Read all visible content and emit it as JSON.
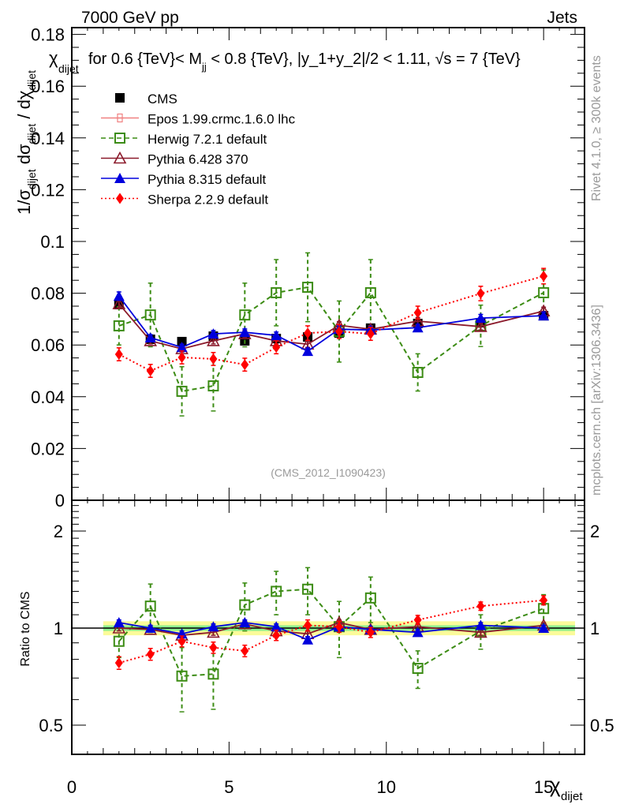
{
  "header": {
    "left_label": "7000 GeV pp",
    "right_label": "Jets"
  },
  "side_labels": {
    "rivet": "Rivet 4.1.0, ≥ 300k events",
    "mcplots": "mcplots.cern.ch [arXiv:1306.3436]"
  },
  "chart_data": [
    {
      "type": "line",
      "panel": "main",
      "title_prefix": "χ",
      "title_prefix_sub": "dijet",
      "title": "for 0.6 {TeV}< M",
      "title_sub": "jj",
      "title_suffix": " < 0.8 {TeV}, |y_1+y_2|/2 < 1.11, √s = 7 {TeV}",
      "ylabel": "1/σ_dijet dσ_dijet / dχ_dijet",
      "ylabel_parts": {
        "a": "1/σ",
        "a_sub": "dijet",
        "b": " dσ",
        "b_sub": "dijet",
        "c": " / dχ",
        "c_sub": "dijet"
      },
      "xlabel": "χ_dijet",
      "xlim": [
        0,
        16.3
      ],
      "ylim": [
        0,
        0.185
      ],
      "yticks": [
        0,
        0.02,
        0.04,
        0.06,
        0.08,
        0.1,
        0.12,
        0.14,
        0.16,
        0.18
      ],
      "ytick_labels": [
        "0",
        "0.02",
        "0.04",
        "0.06",
        "0.08",
        "0.1",
        "0.12",
        "0.14",
        "0.16",
        "0.18"
      ],
      "watermark": "(CMS_2012_I1090423)",
      "legend_position": "top-left",
      "x": [
        1.5,
        2.5,
        3.5,
        4.5,
        5.5,
        6.5,
        7.5,
        8.5,
        9.5,
        11,
        13,
        15
      ],
      "series": [
        {
          "name": "CMS",
          "color": "#000000",
          "marker": "square-filled",
          "line": "none",
          "values": [
            0.0756,
            0.0622,
            0.0613,
            0.0634,
            0.0616,
            0.0625,
            0.0631,
            0.0646,
            0.0665,
            0.0683,
            0.0686,
            0.0713
          ],
          "errors": [
            0.001,
            0.001,
            0.001,
            0.001,
            0.001,
            0.001,
            0.001,
            0.001,
            0.001,
            0.001,
            0.001,
            0.001
          ]
        },
        {
          "name": "Epos 1.99.crmc.1.6.0 lhc",
          "color": "#f08080",
          "marker": "plus-open",
          "line": "solid",
          "values": [],
          "errors": []
        },
        {
          "name": "Herwig 7.2.1 default",
          "color": "#3c8c14",
          "marker": "square-open",
          "line": "dashed",
          "values": [
            0.0674,
            0.0716,
            0.0421,
            0.0442,
            0.0716,
            0.0802,
            0.0823,
            0.0652,
            0.0802,
            0.0494,
            0.0674,
            0.0802
          ],
          "errors": [
            0.0074,
            0.0123,
            0.0095,
            0.0097,
            0.0123,
            0.0128,
            0.0133,
            0.0118,
            0.0128,
            0.0072,
            0.008,
            0.0088
          ]
        },
        {
          "name": "Pythia 6.428 370",
          "color": "#8b1a2b",
          "marker": "triangle-open",
          "line": "solid",
          "values": [
            0.0759,
            0.0616,
            0.0585,
            0.0616,
            0.0643,
            0.0616,
            0.0603,
            0.0676,
            0.0661,
            0.0692,
            0.0671,
            0.0731
          ],
          "errors": [
            0.0015,
            0.0012,
            0.0012,
            0.0012,
            0.0013,
            0.0012,
            0.0012,
            0.0014,
            0.0013,
            0.0014,
            0.0013,
            0.0015
          ]
        },
        {
          "name": "Pythia 8.315 default",
          "color": "#0000dd",
          "marker": "triangle-filled",
          "line": "solid",
          "values": [
            0.0789,
            0.0628,
            0.0591,
            0.0643,
            0.0649,
            0.0637,
            0.0576,
            0.0661,
            0.0658,
            0.0667,
            0.0704,
            0.0713
          ],
          "errors": [
            0.0016,
            0.0012,
            0.0012,
            0.0013,
            0.0013,
            0.0013,
            0.0012,
            0.0013,
            0.0013,
            0.0013,
            0.0014,
            0.0014
          ]
        },
        {
          "name": "Sherpa 2.2.9 default",
          "color": "#ff0000",
          "marker": "diamond-filled",
          "line": "dotted",
          "values": [
            0.0564,
            0.05,
            0.0552,
            0.0546,
            0.0524,
            0.0591,
            0.0646,
            0.0652,
            0.0643,
            0.0725,
            0.0799,
            0.0866
          ],
          "errors": [
            0.0025,
            0.0025,
            0.0025,
            0.0025,
            0.0025,
            0.0025,
            0.0028,
            0.0027,
            0.0025,
            0.0025,
            0.0028,
            0.003
          ]
        }
      ]
    },
    {
      "type": "line",
      "panel": "ratio",
      "ylabel": "Ratio to CMS",
      "xlabel": "χ_dijet",
      "yscale": "log",
      "xlim": [
        0,
        16.3
      ],
      "ylim": [
        0.4,
        2.5
      ],
      "yticks": [
        0.5,
        1,
        2
      ],
      "ytick_labels": [
        "0.5",
        "1",
        "2"
      ],
      "xticks": [
        0,
        5,
        10,
        15
      ],
      "xtick_labels": [
        "0",
        "5",
        "10",
        "15"
      ],
      "reference_band": {
        "inner_color": "#8ef08e",
        "outer_color": "#fbfb9a",
        "inner_halfwidth": 0.02,
        "outer_halfwidth": 0.05
      },
      "x": [
        1.5,
        2.5,
        3.5,
        4.5,
        5.5,
        6.5,
        7.5,
        8.5,
        9.5,
        11,
        13,
        15
      ],
      "series": [
        {
          "name": "Herwig 7.2.1 default",
          "color": "#3c8c14",
          "marker": "square-open",
          "line": "dashed",
          "values": [
            0.91,
            1.17,
            0.71,
            0.72,
            1.18,
            1.3,
            1.32,
            1.01,
            1.24,
            0.75,
            0.98,
            1.15
          ],
          "errors": [
            0.1,
            0.2,
            0.16,
            0.16,
            0.2,
            0.2,
            0.22,
            0.2,
            0.2,
            0.1,
            0.12,
            0.12
          ]
        },
        {
          "name": "Pythia 6.428 370",
          "color": "#8b1a2b",
          "marker": "triangle-open",
          "line": "solid",
          "values": [
            1.0,
            0.99,
            0.95,
            0.97,
            1.03,
            0.98,
            0.96,
            1.04,
            0.99,
            1.01,
            0.97,
            1.02
          ],
          "errors": [
            0.02,
            0.02,
            0.02,
            0.02,
            0.02,
            0.02,
            0.02,
            0.02,
            0.02,
            0.02,
            0.02,
            0.02
          ]
        },
        {
          "name": "Pythia 8.315 default",
          "color": "#0000dd",
          "marker": "triangle-filled",
          "line": "solid",
          "values": [
            1.04,
            1.0,
            0.96,
            1.01,
            1.04,
            1.01,
            0.92,
            1.01,
            0.99,
            0.97,
            1.02,
            1.0
          ],
          "errors": [
            0.02,
            0.02,
            0.02,
            0.02,
            0.02,
            0.02,
            0.02,
            0.02,
            0.02,
            0.02,
            0.02,
            0.02
          ]
        },
        {
          "name": "Sherpa 2.2.9 default",
          "color": "#ff0000",
          "marker": "diamond-filled",
          "line": "dotted",
          "values": [
            0.78,
            0.83,
            0.91,
            0.87,
            0.85,
            0.95,
            1.02,
            1.01,
            0.97,
            1.06,
            1.17,
            1.22
          ],
          "errors": [
            0.035,
            0.035,
            0.035,
            0.035,
            0.035,
            0.035,
            0.04,
            0.04,
            0.035,
            0.035,
            0.035,
            0.04
          ]
        }
      ]
    }
  ]
}
